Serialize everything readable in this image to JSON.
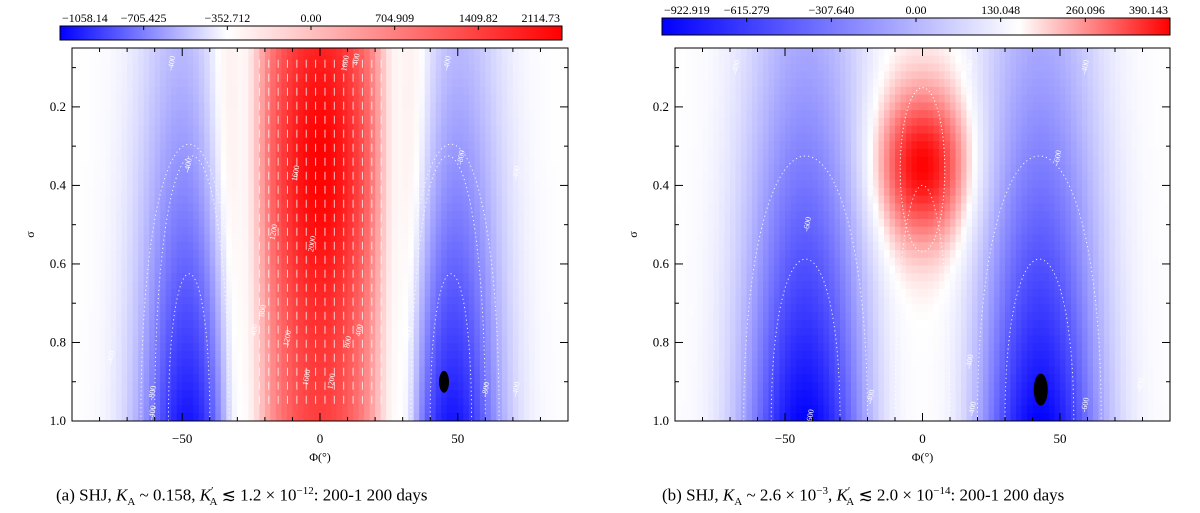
{
  "colors": {
    "negative": "#0000ff",
    "zero": "#ffffff",
    "positive": "#ff0000",
    "frame": "#000000",
    "contour": "#ffffff",
    "blob": "#000000"
  },
  "chart_data": [
    {
      "type": "heatmap",
      "panel": "a",
      "caption": "(a) SHJ, K_A ~ 0.158, K'_A ≲ 1.2 × 10^-12: 200-1 200 days",
      "caption_parts": {
        "prefix": "(a) SHJ, ",
        "k": "K",
        "k_sub": "A",
        "eq1": " ~ 0.158, ",
        "kp": "K",
        "kp_sup": "′",
        "kp_sub": "A",
        "eq2": " ≲ 1.2 × 10",
        "exp": "−12",
        "suffix": ": 200-1 200 days"
      },
      "xlabel": "Φ(°)",
      "ylabel": "σ",
      "xlim": [
        -90,
        90
      ],
      "ylim": [
        0.05,
        1.0
      ],
      "y_inverted": true,
      "xticks": [
        -50,
        0,
        50
      ],
      "yticks": [
        0.2,
        0.4,
        0.6,
        0.8,
        1.0
      ],
      "ytick_labels": [
        "0.2",
        "0.4",
        "0.6",
        "0.8",
        "1.0"
      ],
      "colorbar": {
        "min": -1058.14,
        "max": 2114.73,
        "ticks": [
          -1058.14,
          -705.425,
          -352.712,
          0.0,
          704.909,
          1409.82,
          2114.73
        ],
        "tick_labels": [
          "−1058.14",
          "−705.425",
          "−352.712",
          "0.00",
          "704.909",
          "1409.82",
          "2114.73"
        ]
      },
      "field": {
        "center_peak": 2114.73,
        "center_width_deg": 27,
        "center_core_sigma": 0.35,
        "lobe_center_deg": 47,
        "lobe_peak": -1058.14
      },
      "contour_labels": [
        {
          "text": "-400",
          "x": -53,
          "y": 0.09
        },
        {
          "text": "-400",
          "x": -47,
          "y": 0.35
        },
        {
          "text": "-400",
          "x": -75,
          "y": 0.84
        },
        {
          "text": "-800",
          "x": -60,
          "y": 0.93
        },
        {
          "text": "-400",
          "x": -60,
          "y": 0.98
        },
        {
          "text": "-400",
          "x": 47,
          "y": 0.09
        },
        {
          "text": "-400",
          "x": 72,
          "y": 0.37
        },
        {
          "text": "-800",
          "x": 52,
          "y": 0.33
        },
        {
          "text": "-400",
          "x": 33,
          "y": 0.78
        },
        {
          "text": "-800",
          "x": 61,
          "y": 0.92
        },
        {
          "text": "-400",
          "x": 72,
          "y": 0.92
        },
        {
          "text": "1600",
          "x": -8,
          "y": 0.37
        },
        {
          "text": "1200",
          "x": -16,
          "y": 0.52
        },
        {
          "text": "2000",
          "x": -2,
          "y": 0.55
        },
        {
          "text": "800",
          "x": -20,
          "y": 0.72
        },
        {
          "text": "400",
          "x": -23,
          "y": 0.77
        },
        {
          "text": "1200",
          "x": -11,
          "y": 0.79
        },
        {
          "text": "1600",
          "x": -4,
          "y": 0.89
        },
        {
          "text": "1200",
          "x": 5,
          "y": 0.9
        },
        {
          "text": "800",
          "x": 11,
          "y": 0.8
        },
        {
          "text": "400",
          "x": 15,
          "y": 0.77
        },
        {
          "text": "400",
          "x": 14,
          "y": 0.08
        },
        {
          "text": "1600",
          "x": 10,
          "y": 0.09
        }
      ],
      "blob": {
        "x": 45,
        "y": 0.9
      }
    },
    {
      "type": "heatmap",
      "panel": "b",
      "caption": "(b) SHJ, K_A ~ 2.6 × 10^-3, K'_A ≲ 2.0 × 10^-14: 200-1 200 days",
      "caption_parts": {
        "prefix": "(b) SHJ, ",
        "k": "K",
        "k_sub": "A",
        "eq1": " ~ 2.6 × 10",
        "eq1_exp": "−3",
        "eq1b": ", ",
        "kp": "K",
        "kp_sup": "′",
        "kp_sub": "A",
        "eq2": " ≲ 2.0 × 10",
        "exp": "−14",
        "suffix": ": 200-1 200 days"
      },
      "xlabel": "Φ(°)",
      "ylabel": "σ",
      "xlim": [
        -90,
        90
      ],
      "ylim": [
        0.05,
        1.0
      ],
      "y_inverted": true,
      "xticks": [
        -50,
        0,
        50
      ],
      "yticks": [
        0.2,
        0.4,
        0.6,
        0.8,
        1.0
      ],
      "ytick_labels": [
        "0.2",
        "0.4",
        "0.6",
        "0.8",
        "1.0"
      ],
      "colorbar": {
        "min": -922.919,
        "max": 390.143,
        "ticks": [
          -922.919,
          -615.279,
          -307.64,
          0.0,
          130.048,
          260.096,
          390.143
        ],
        "tick_labels": [
          "−922.919",
          "−615.279",
          "−307.640",
          "0.00",
          "130.048",
          "260.096",
          "390.143"
        ]
      },
      "field": {
        "center_peak": 390.143,
        "center_width_deg": 18,
        "center_core_sigma": 0.35,
        "lobe_center_deg": 43,
        "lobe_peak": -922.919
      },
      "contour_labels": [
        {
          "text": "-400",
          "x": -67,
          "y": 0.1
        },
        {
          "text": "-400",
          "x": -18,
          "y": 0.42
        },
        {
          "text": "-600",
          "x": -41,
          "y": 0.5
        },
        {
          "text": "-400",
          "x": -83,
          "y": 0.72
        },
        {
          "text": "-600",
          "x": -40,
          "y": 0.99
        },
        {
          "text": "-400",
          "x": -18,
          "y": 0.94
        },
        {
          "text": "-400",
          "x": 18,
          "y": 0.1
        },
        {
          "text": "-400",
          "x": 60,
          "y": 0.1
        },
        {
          "text": "-600",
          "x": 50,
          "y": 0.33
        },
        {
          "text": "-400",
          "x": 18,
          "y": 0.85
        },
        {
          "text": "-400",
          "x": 19,
          "y": 0.97
        },
        {
          "text": "-600",
          "x": 60,
          "y": 0.96
        },
        {
          "text": "-400",
          "x": 80,
          "y": 0.91
        }
      ],
      "blob": {
        "x": 43,
        "y": 0.92
      }
    }
  ]
}
